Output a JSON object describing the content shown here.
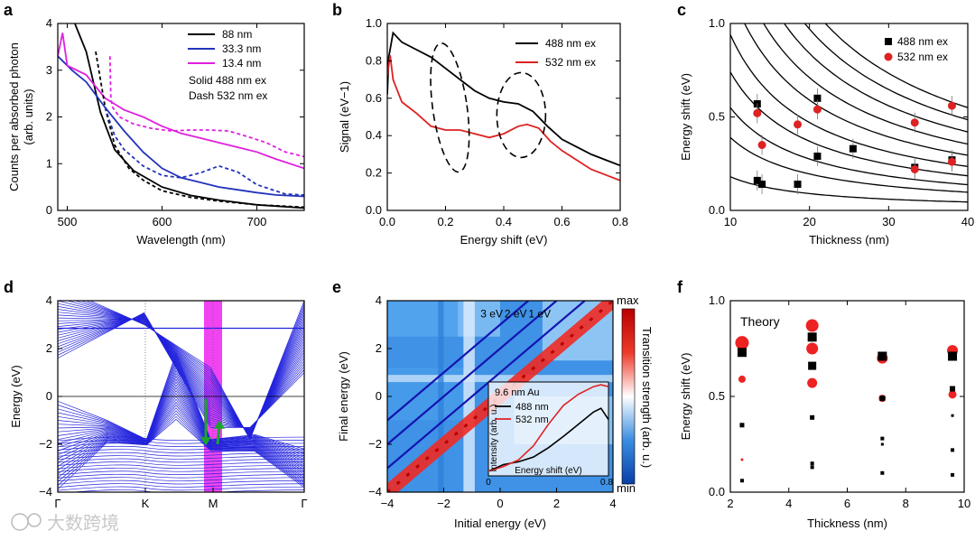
{
  "panel_letters": [
    "a",
    "b",
    "c",
    "d",
    "e",
    "f"
  ],
  "watermark": "大数跨境",
  "chart_data": [
    {
      "panel": "a",
      "type": "line",
      "xlabel": "Wavelength (nm)",
      "ylabel": "Counts per absorbed photon (arb. units)",
      "xlim": [
        490,
        750
      ],
      "ylim": [
        0,
        4
      ],
      "xticks": [
        "500",
        "600",
        "700"
      ],
      "yticks": [
        "0",
        "1",
        "2",
        "3",
        "4"
      ],
      "legend": [
        "88 nm",
        "33.3 nm",
        "13.4 nm"
      ],
      "notes": [
        "Solid 488 nm ex",
        "Dash 532 nm ex"
      ],
      "colors": {
        "88 nm": "#000000",
        "33.3 nm": "#2233bb",
        "13.4 nm": "#e020e0"
      },
      "series": [
        {
          "name": "88 nm",
          "style": "solid",
          "x": [
            508,
            520,
            535,
            550,
            570,
            600,
            630,
            660,
            700,
            750
          ],
          "y": [
            4.0,
            3.4,
            2.1,
            1.3,
            0.85,
            0.5,
            0.32,
            0.22,
            0.12,
            0.05
          ]
        },
        {
          "name": "33.3 nm",
          "style": "solid",
          "x": [
            490,
            505,
            520,
            540,
            560,
            580,
            600,
            620,
            640,
            660,
            680,
            700,
            720,
            750
          ],
          "y": [
            3.3,
            3.0,
            2.75,
            2.2,
            1.7,
            1.25,
            0.9,
            0.7,
            0.6,
            0.5,
            0.44,
            0.38,
            0.33,
            0.3
          ]
        },
        {
          "name": "13.4 nm",
          "style": "solid",
          "x": [
            490,
            495,
            500,
            520,
            540,
            560,
            580,
            600,
            620,
            640,
            660,
            680,
            700,
            720,
            750
          ],
          "y": [
            3.3,
            3.8,
            3.1,
            2.9,
            2.4,
            2.15,
            2.0,
            1.8,
            1.65,
            1.55,
            1.45,
            1.35,
            1.25,
            1.1,
            0.9
          ]
        },
        {
          "name": "88 nm",
          "style": "dash",
          "x": [
            530,
            540,
            550,
            565,
            580,
            600,
            630,
            660,
            700,
            750
          ],
          "y": [
            3.4,
            2.2,
            1.4,
            0.9,
            0.65,
            0.42,
            0.28,
            0.2,
            0.12,
            0.07
          ]
        },
        {
          "name": "33.3 nm",
          "style": "dash",
          "x": [
            540,
            550,
            560,
            580,
            600,
            620,
            640,
            660,
            680,
            700,
            730,
            750
          ],
          "y": [
            2.2,
            1.6,
            1.3,
            0.95,
            0.75,
            0.7,
            0.8,
            0.95,
            0.82,
            0.55,
            0.35,
            0.33
          ]
        },
        {
          "name": "13.4 nm",
          "style": "dash",
          "x": [
            545,
            546,
            548,
            555,
            570,
            590,
            610,
            630,
            650,
            670,
            690,
            710,
            730,
            750
          ],
          "y": [
            3.3,
            2.4,
            2.2,
            2.0,
            1.85,
            1.75,
            1.7,
            1.72,
            1.72,
            1.7,
            1.58,
            1.45,
            1.25,
            1.15
          ]
        }
      ]
    },
    {
      "panel": "b",
      "type": "line",
      "xlabel": "Energy shift (eV)",
      "ylabel": "Signal (eV−1)",
      "xlim": [
        0,
        0.8
      ],
      "ylim": [
        0,
        1.0
      ],
      "xticks": [
        "0.0",
        "0.2",
        "0.4",
        "0.6",
        "0.8"
      ],
      "yticks": [
        "0.0",
        "0.2",
        "0.4",
        "0.6",
        "0.8",
        "1.0"
      ],
      "legend": [
        "488 nm ex",
        "532 nm ex"
      ],
      "colors": {
        "488 nm ex": "#000000",
        "532 nm ex": "#dd2222"
      },
      "series": [
        {
          "name": "488 nm ex",
          "x": [
            0.0,
            0.005,
            0.02,
            0.05,
            0.1,
            0.15,
            0.2,
            0.25,
            0.3,
            0.35,
            0.4,
            0.45,
            0.5,
            0.55,
            0.6,
            0.65,
            0.7,
            0.75,
            0.8
          ],
          "y": [
            0.62,
            0.82,
            0.95,
            0.9,
            0.86,
            0.82,
            0.76,
            0.7,
            0.64,
            0.6,
            0.58,
            0.57,
            0.53,
            0.45,
            0.38,
            0.34,
            0.3,
            0.27,
            0.24
          ]
        },
        {
          "name": "532 nm ex",
          "x": [
            0.0,
            0.01,
            0.02,
            0.05,
            0.1,
            0.15,
            0.2,
            0.25,
            0.3,
            0.35,
            0.4,
            0.45,
            0.48,
            0.52,
            0.56,
            0.6,
            0.65,
            0.7,
            0.75,
            0.8
          ],
          "y": [
            0.72,
            0.83,
            0.7,
            0.58,
            0.52,
            0.45,
            0.43,
            0.43,
            0.41,
            0.39,
            0.41,
            0.45,
            0.46,
            0.44,
            0.37,
            0.32,
            0.27,
            0.22,
            0.19,
            0.16
          ]
        }
      ]
    },
    {
      "panel": "c",
      "type": "scatter",
      "xlabel": "Thickness (nm)",
      "ylabel": "Energy shift (eV)",
      "xlim": [
        10,
        40
      ],
      "ylim": [
        0,
        1.0
      ],
      "xticks": [
        "10",
        "20",
        "30",
        "40"
      ],
      "yticks": [
        "0.0",
        "0.5",
        "1.0"
      ],
      "legend": [
        "488 nm ex",
        "532 nm ex"
      ],
      "colors": {
        "488 nm ex": "#000000",
        "532 nm ex": "#dd2222"
      },
      "series": [
        {
          "name": "488 nm ex",
          "x": [
            13.4,
            13.4,
            14.0,
            18.5,
            21.0,
            21.0,
            25.5,
            33.3,
            38.0
          ],
          "y": [
            0.57,
            0.16,
            0.14,
            0.14,
            0.6,
            0.29,
            0.33,
            0.23,
            0.27
          ]
        },
        {
          "name": "532 nm ex",
          "x": [
            13.4,
            14.0,
            18.5,
            21.0,
            33.3,
            33.3,
            38.0,
            38.0
          ],
          "y": [
            0.52,
            0.35,
            0.46,
            0.54,
            0.47,
            0.22,
            0.56,
            0.26
          ]
        }
      ],
      "model_curves_E_times_thickness": [
        1.8,
        3.9,
        5.5,
        7.4,
        9.4,
        11.8,
        14.2,
        16.8,
        19.4,
        22.0
      ]
    },
    {
      "panel": "d",
      "type": "line",
      "xlabel": "",
      "ylabel": "Energy (eV)",
      "ylim": [
        -4,
        4
      ],
      "xticks": [
        "Γ",
        "K",
        "M",
        "Γ"
      ],
      "yticks": [
        "−4",
        "−2",
        "0",
        "2",
        "4"
      ],
      "description": "band structure"
    },
    {
      "panel": "e",
      "type": "heatmap",
      "xlabel": "Initial energy (eV)",
      "ylabel": "Final energy (eV)",
      "xlim": [
        -4,
        4
      ],
      "ylim": [
        -4,
        4
      ],
      "xticks": [
        "−4",
        "−2",
        "0",
        "2",
        "4"
      ],
      "yticks": [
        "−4",
        "−2",
        "0",
        "2",
        "4"
      ],
      "colorbar_label": "Transition strength (arb. u.)",
      "colorbar_ticks": [
        "max",
        "min"
      ],
      "line_labels": [
        "3 eV",
        "2 eV",
        "1 eV"
      ],
      "inset": {
        "title": "9.6 nm Au",
        "xlabel": "Energy shift (eV)",
        "ylabel": "Intensity (arb. u.)",
        "xticks": [
          "0",
          "0.8"
        ],
        "legend": [
          "488 nm",
          "532 nm"
        ],
        "series": [
          {
            "name": "488 nm",
            "x": [
              0,
              0.1,
              0.2,
              0.3,
              0.4,
              0.5,
              0.6,
              0.7,
              0.75,
              0.8
            ],
            "y": [
              0.05,
              0.12,
              0.15,
              0.2,
              0.3,
              0.42,
              0.55,
              0.68,
              0.72,
              0.6
            ]
          },
          {
            "name": "532 nm",
            "x": [
              0,
              0.1,
              0.2,
              0.3,
              0.4,
              0.5,
              0.6,
              0.7,
              0.75,
              0.8
            ],
            "y": [
              0.05,
              0.1,
              0.17,
              0.32,
              0.55,
              0.75,
              0.87,
              0.95,
              0.97,
              0.95
            ]
          }
        ]
      }
    },
    {
      "panel": "f",
      "type": "scatter",
      "xlabel": "Thickness (nm)",
      "ylabel": "Energy shift (eV)",
      "xlim": [
        2,
        10
      ],
      "ylim": [
        0,
        1.0
      ],
      "xticks": [
        "2",
        "4",
        "6",
        "8",
        "10"
      ],
      "yticks": [
        "0.0",
        "0.5",
        "1.0"
      ],
      "annotation": "Theory",
      "series": [
        {
          "name": "488 nm",
          "x": [
            2.4,
            2.4,
            2.4,
            4.8,
            4.8,
            4.8,
            4.8,
            4.8,
            7.2,
            7.2,
            7.2,
            7.2,
            7.2,
            9.6,
            9.6,
            9.6,
            9.6,
            9.6
          ],
          "y": [
            0.73,
            0.35,
            0.06,
            0.81,
            0.66,
            0.39,
            0.15,
            0.13,
            0.71,
            0.49,
            0.28,
            0.25,
            0.1,
            0.71,
            0.54,
            0.4,
            0.22,
            0.09
          ],
          "size": [
            10,
            5,
            4,
            10,
            9,
            5,
            4,
            4,
            10,
            6,
            4,
            3,
            4,
            10,
            6,
            3,
            4,
            4
          ]
        },
        {
          "name": "532 nm",
          "x": [
            2.4,
            2.4,
            2.4,
            4.8,
            4.8,
            4.8,
            7.2,
            7.2,
            9.6,
            9.6
          ],
          "y": [
            0.78,
            0.59,
            0.17,
            0.87,
            0.75,
            0.57,
            0.7,
            0.49,
            0.74,
            0.51
          ],
          "size": [
            15,
            8,
            3,
            14,
            13,
            11,
            12,
            8,
            12,
            9
          ]
        }
      ]
    }
  ]
}
